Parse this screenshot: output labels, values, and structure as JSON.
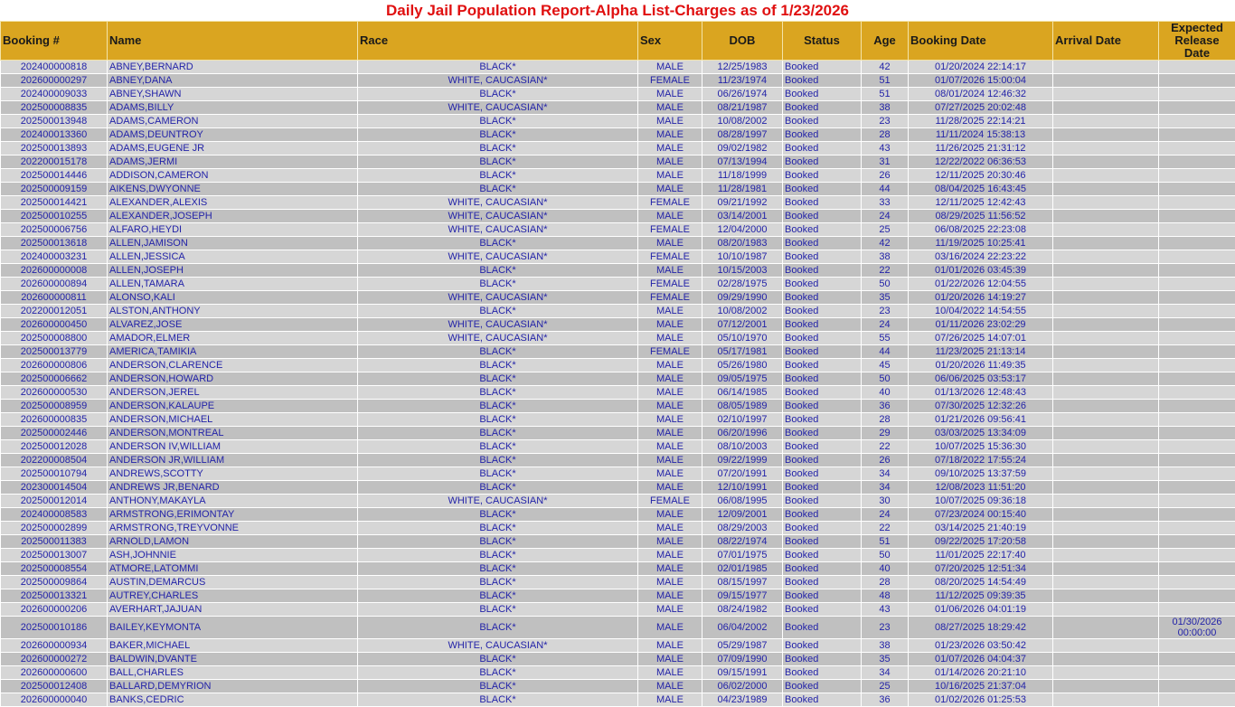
{
  "title": "Daily Jail Population Report-Alpha List-Charges as of 1/23/2026",
  "columns": [
    "Booking #",
    "Name",
    "Race",
    "Sex",
    "DOB",
    "Status",
    "Age",
    "Booking Date",
    "Arrival Date",
    "Expected Release Date"
  ],
  "colors": {
    "header": "#DAA520",
    "title": "#E01010",
    "text": "#2323A8",
    "row_light": "#D6D6D6",
    "row_dark": "#C0C0C0"
  },
  "rows": [
    [
      "202400000818",
      "ABNEY,BERNARD",
      "BLACK*",
      "MALE",
      "12/25/1983",
      "Booked",
      "42",
      "01/20/2024 22:14:17",
      "",
      ""
    ],
    [
      "202600000297",
      "ABNEY,DANA",
      "WHITE, CAUCASIAN*",
      "FEMALE",
      "11/23/1974",
      "Booked",
      "51",
      "01/07/2026 15:00:04",
      "",
      ""
    ],
    [
      "202400009033",
      "ABNEY,SHAWN",
      "BLACK*",
      "MALE",
      "06/26/1974",
      "Booked",
      "51",
      "08/01/2024 12:46:32",
      "",
      ""
    ],
    [
      "202500008835",
      "ADAMS,BILLY",
      "WHITE, CAUCASIAN*",
      "MALE",
      "08/21/1987",
      "Booked",
      "38",
      "07/27/2025 20:02:48",
      "",
      ""
    ],
    [
      "202500013948",
      "ADAMS,CAMERON",
      "BLACK*",
      "MALE",
      "10/08/2002",
      "Booked",
      "23",
      "11/28/2025 22:14:21",
      "",
      ""
    ],
    [
      "202400013360",
      "ADAMS,DEUNTROY",
      "BLACK*",
      "MALE",
      "08/28/1997",
      "Booked",
      "28",
      "11/11/2024 15:38:13",
      "",
      ""
    ],
    [
      "202500013893",
      "ADAMS,EUGENE JR",
      "BLACK*",
      "MALE",
      "09/02/1982",
      "Booked",
      "43",
      "11/26/2025 21:31:12",
      "",
      ""
    ],
    [
      "202200015178",
      "ADAMS,JERMI",
      "BLACK*",
      "MALE",
      "07/13/1994",
      "Booked",
      "31",
      "12/22/2022 06:36:53",
      "",
      ""
    ],
    [
      "202500014446",
      "ADDISON,CAMERON",
      "BLACK*",
      "MALE",
      "11/18/1999",
      "Booked",
      "26",
      "12/11/2025 20:30:46",
      "",
      ""
    ],
    [
      "202500009159",
      "AIKENS,DWYONNE",
      "BLACK*",
      "MALE",
      "11/28/1981",
      "Booked",
      "44",
      "08/04/2025 16:43:45",
      "",
      ""
    ],
    [
      "202500014421",
      "ALEXANDER,ALEXIS",
      "WHITE, CAUCASIAN*",
      "FEMALE",
      "09/21/1992",
      "Booked",
      "33",
      "12/11/2025 12:42:43",
      "",
      ""
    ],
    [
      "202500010255",
      "ALEXANDER,JOSEPH",
      "WHITE, CAUCASIAN*",
      "MALE",
      "03/14/2001",
      "Booked",
      "24",
      "08/29/2025 11:56:52",
      "",
      ""
    ],
    [
      "202500006756",
      "ALFARO,HEYDI",
      "WHITE, CAUCASIAN*",
      "FEMALE",
      "12/04/2000",
      "Booked",
      "25",
      "06/08/2025 22:23:08",
      "",
      ""
    ],
    [
      "202500013618",
      "ALLEN,JAMISON",
      "BLACK*",
      "MALE",
      "08/20/1983",
      "Booked",
      "42",
      "11/19/2025 10:25:41",
      "",
      ""
    ],
    [
      "202400003231",
      "ALLEN,JESSICA",
      "WHITE, CAUCASIAN*",
      "FEMALE",
      "10/10/1987",
      "Booked",
      "38",
      "03/16/2024 22:23:22",
      "",
      ""
    ],
    [
      "202600000008",
      "ALLEN,JOSEPH",
      "BLACK*",
      "MALE",
      "10/15/2003",
      "Booked",
      "22",
      "01/01/2026 03:45:39",
      "",
      ""
    ],
    [
      "202600000894",
      "ALLEN,TAMARA",
      "BLACK*",
      "FEMALE",
      "02/28/1975",
      "Booked",
      "50",
      "01/22/2026 12:04:55",
      "",
      ""
    ],
    [
      "202600000811",
      "ALONSO,KALI",
      "WHITE, CAUCASIAN*",
      "FEMALE",
      "09/29/1990",
      "Booked",
      "35",
      "01/20/2026 14:19:27",
      "",
      ""
    ],
    [
      "202200012051",
      "ALSTON,ANTHONY",
      "BLACK*",
      "MALE",
      "10/08/2002",
      "Booked",
      "23",
      "10/04/2022 14:54:55",
      "",
      ""
    ],
    [
      "202600000450",
      "ALVAREZ,JOSE",
      "WHITE, CAUCASIAN*",
      "MALE",
      "07/12/2001",
      "Booked",
      "24",
      "01/11/2026 23:02:29",
      "",
      ""
    ],
    [
      "202500008800",
      "AMADOR,ELMER",
      "WHITE, CAUCASIAN*",
      "MALE",
      "05/10/1970",
      "Booked",
      "55",
      "07/26/2025 14:07:01",
      "",
      ""
    ],
    [
      "202500013779",
      "AMERICA,TAMIKIA",
      "BLACK*",
      "FEMALE",
      "05/17/1981",
      "Booked",
      "44",
      "11/23/2025 21:13:14",
      "",
      ""
    ],
    [
      "202600000806",
      "ANDERSON,CLARENCE",
      "BLACK*",
      "MALE",
      "05/26/1980",
      "Booked",
      "45",
      "01/20/2026 11:49:35",
      "",
      ""
    ],
    [
      "202500006662",
      "ANDERSON,HOWARD",
      "BLACK*",
      "MALE",
      "09/05/1975",
      "Booked",
      "50",
      "06/06/2025 03:53:17",
      "",
      ""
    ],
    [
      "202600000530",
      "ANDERSON,JEREL",
      "BLACK*",
      "MALE",
      "06/14/1985",
      "Booked",
      "40",
      "01/13/2026 12:48:43",
      "",
      ""
    ],
    [
      "202500008959",
      "ANDERSON,KALAUPE",
      "BLACK*",
      "MALE",
      "08/05/1989",
      "Booked",
      "36",
      "07/30/2025 12:32:26",
      "",
      ""
    ],
    [
      "202600000835",
      "ANDERSON,MICHAEL",
      "BLACK*",
      "MALE",
      "02/10/1997",
      "Booked",
      "28",
      "01/21/2026 09:56:41",
      "",
      ""
    ],
    [
      "202500002446",
      "ANDERSON,MONTREAL",
      "BLACK*",
      "MALE",
      "06/20/1996",
      "Booked",
      "29",
      "03/03/2025 13:34:09",
      "",
      ""
    ],
    [
      "202500012028",
      "ANDERSON IV,WILLIAM",
      "BLACK*",
      "MALE",
      "08/10/2003",
      "Booked",
      "22",
      "10/07/2025 15:36:30",
      "",
      ""
    ],
    [
      "202200008504",
      "ANDERSON JR,WILLIAM",
      "BLACK*",
      "MALE",
      "09/22/1999",
      "Booked",
      "26",
      "07/18/2022 17:55:24",
      "",
      ""
    ],
    [
      "202500010794",
      "ANDREWS,SCOTTY",
      "BLACK*",
      "MALE",
      "07/20/1991",
      "Booked",
      "34",
      "09/10/2025 13:37:59",
      "",
      ""
    ],
    [
      "202300014504",
      "ANDREWS JR,BENARD",
      "BLACK*",
      "MALE",
      "12/10/1991",
      "Booked",
      "34",
      "12/08/2023 11:51:20",
      "",
      ""
    ],
    [
      "202500012014",
      "ANTHONY,MAKAYLA",
      "WHITE, CAUCASIAN*",
      "FEMALE",
      "06/08/1995",
      "Booked",
      "30",
      "10/07/2025 09:36:18",
      "",
      ""
    ],
    [
      "202400008583",
      "ARMSTRONG,ERIMONTAY",
      "BLACK*",
      "MALE",
      "12/09/2001",
      "Booked",
      "24",
      "07/23/2024 00:15:40",
      "",
      ""
    ],
    [
      "202500002899",
      "ARMSTRONG,TREYVONNE",
      "BLACK*",
      "MALE",
      "08/29/2003",
      "Booked",
      "22",
      "03/14/2025 21:40:19",
      "",
      ""
    ],
    [
      "202500011383",
      "ARNOLD,LAMON",
      "BLACK*",
      "MALE",
      "08/22/1974",
      "Booked",
      "51",
      "09/22/2025 17:20:58",
      "",
      ""
    ],
    [
      "202500013007",
      "ASH,JOHNNIE",
      "BLACK*",
      "MALE",
      "07/01/1975",
      "Booked",
      "50",
      "11/01/2025 22:17:40",
      "",
      ""
    ],
    [
      "202500008554",
      "ATMORE,LATOMMI",
      "BLACK*",
      "MALE",
      "02/01/1985",
      "Booked",
      "40",
      "07/20/2025 12:51:34",
      "",
      ""
    ],
    [
      "202500009864",
      "AUSTIN,DEMARCUS",
      "BLACK*",
      "MALE",
      "08/15/1997",
      "Booked",
      "28",
      "08/20/2025 14:54:49",
      "",
      ""
    ],
    [
      "202500013321",
      "AUTREY,CHARLES",
      "BLACK*",
      "MALE",
      "09/15/1977",
      "Booked",
      "48",
      "11/12/2025 09:39:35",
      "",
      ""
    ],
    [
      "202600000206",
      "AVERHART,JAJUAN",
      "BLACK*",
      "MALE",
      "08/24/1982",
      "Booked",
      "43",
      "01/06/2026 04:01:19",
      "",
      ""
    ],
    [
      "202500010186",
      "BAILEY,KEYMONTA",
      "BLACK*",
      "MALE",
      "06/04/2002",
      "Booked",
      "23",
      "08/27/2025 18:29:42",
      "",
      "01/30/2026 00:00:00"
    ],
    [
      "202600000934",
      "BAKER,MICHAEL",
      "WHITE, CAUCASIAN*",
      "MALE",
      "05/29/1987",
      "Booked",
      "38",
      "01/23/2026 03:50:42",
      "",
      ""
    ],
    [
      "202600000272",
      "BALDWIN,DVANTE",
      "BLACK*",
      "MALE",
      "07/09/1990",
      "Booked",
      "35",
      "01/07/2026 04:04:37",
      "",
      ""
    ],
    [
      "202600000600",
      "BALL,CHARLES",
      "BLACK*",
      "MALE",
      "09/15/1991",
      "Booked",
      "34",
      "01/14/2026 20:21:10",
      "",
      ""
    ],
    [
      "202500012408",
      "BALLARD,DEMYRION",
      "BLACK*",
      "MALE",
      "06/02/2000",
      "Booked",
      "25",
      "10/16/2025 21:37:04",
      "",
      ""
    ],
    [
      "202600000040",
      "BANKS,CEDRIC",
      "BLACK*",
      "MALE",
      "04/23/1989",
      "Booked",
      "36",
      "01/02/2026 01:25:53",
      "",
      ""
    ]
  ]
}
